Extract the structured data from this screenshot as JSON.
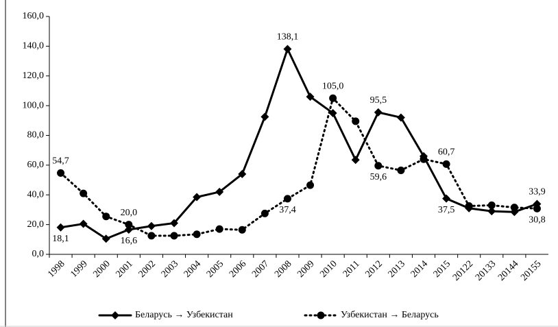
{
  "chart_data": {
    "type": "line",
    "categories": [
      "1998",
      "1999",
      "2000",
      "2001",
      "2002",
      "2003",
      "2004",
      "2005",
      "2006",
      "2007",
      "2008",
      "2009",
      "2010",
      "2011",
      "2012",
      "2013",
      "2014",
      "2015",
      "20122",
      "20133",
      "20144",
      "20155"
    ],
    "series": [
      {
        "name": "Беларусь → Узбекистан",
        "color": "#000000",
        "line_style": "solid",
        "marker": "diamond",
        "values": [
          18.1,
          20.5,
          10.5,
          16.6,
          19,
          21,
          38.5,
          42,
          54,
          92.5,
          138.1,
          106,
          95,
          63.5,
          95.5,
          92,
          66,
          37.5,
          31,
          29,
          28.5,
          33.9
        ],
        "value_labels": [
          "18,1",
          null,
          null,
          "16,6",
          null,
          null,
          null,
          null,
          null,
          null,
          "138,1",
          null,
          null,
          null,
          "95,5",
          null,
          null,
          "37,5",
          null,
          null,
          null,
          "33,9"
        ]
      },
      {
        "name": "Узбекистан  → Беларусь",
        "color": "#000000",
        "line_style": "dotted",
        "marker": "circle",
        "values": [
          54.7,
          41,
          25.5,
          20.0,
          12.5,
          12.5,
          13.5,
          17,
          16.5,
          27.5,
          37.4,
          46.5,
          105.0,
          89.5,
          59.6,
          56.5,
          64,
          60.7,
          32.5,
          33,
          31.5,
          30.8
        ],
        "value_labels": [
          "54,7",
          null,
          null,
          "20,0",
          null,
          null,
          null,
          null,
          null,
          null,
          "37,4",
          null,
          "105,0",
          null,
          "59,6",
          null,
          null,
          "60,7",
          null,
          null,
          null,
          "30,8"
        ]
      }
    ],
    "ylim": [
      0,
      160
    ],
    "yticks": [
      {
        "value": 0,
        "label": "0,0"
      },
      {
        "value": 20,
        "label": "20,0"
      },
      {
        "value": 40,
        "label": "40,0"
      },
      {
        "value": 60,
        "label": "60,0"
      },
      {
        "value": 80,
        "label": "80,0"
      },
      {
        "value": 100,
        "label": "100,0"
      },
      {
        "value": 120,
        "label": "120,0"
      },
      {
        "value": 140,
        "label": "140,0"
      },
      {
        "value": 160,
        "label": "160,0"
      }
    ],
    "grid": false,
    "legend": "bottom"
  }
}
